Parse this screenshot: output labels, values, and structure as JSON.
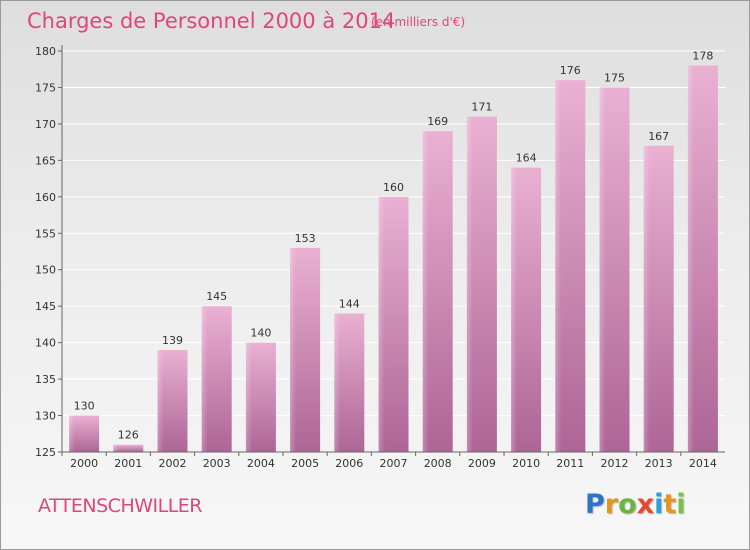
{
  "chart_data": {
    "type": "bar",
    "title": "Charges de Personnel 2000 à 2014",
    "subtitle": "(en milliers d'€)",
    "categories": [
      "2000",
      "2001",
      "2002",
      "2003",
      "2004",
      "2005",
      "2006",
      "2007",
      "2008",
      "2009",
      "2010",
      "2011",
      "2012",
      "2013",
      "2014"
    ],
    "values": [
      130,
      126,
      139,
      145,
      140,
      153,
      144,
      160,
      169,
      171,
      164,
      176,
      175,
      167,
      178
    ],
    "ylim": [
      125,
      180
    ],
    "yticks": [
      125,
      130,
      135,
      140,
      145,
      150,
      155,
      160,
      165,
      170,
      175,
      180
    ],
    "xlabel": "",
    "ylabel": "",
    "grid": true,
    "colors": {
      "bar_top": "#e8a9cf",
      "bar_bottom": "#b0699a",
      "text_accent": "#e0457b"
    }
  },
  "footer": {
    "city": "ATTENSCHWILLER",
    "logo_letters": [
      "P",
      "r",
      "o",
      "x",
      "i",
      "t",
      "i"
    ],
    "logo_colors": [
      "#2b74c9",
      "#e3951f",
      "#6db33f",
      "#e64a2e",
      "#2b9fd8",
      "#e3951f",
      "#7cc142"
    ]
  }
}
